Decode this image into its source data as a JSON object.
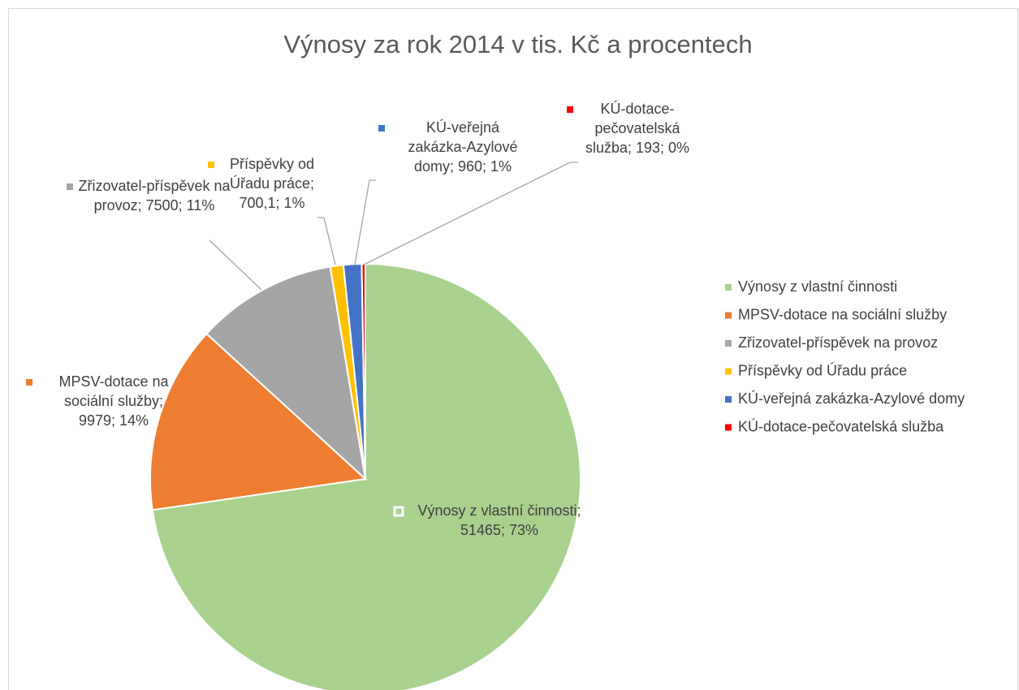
{
  "chart_data": {
    "type": "pie",
    "title": "Výnosy za rok 2014 v tis. Kč a procentech",
    "categories": [
      "Výnosy z vlastní činnosti",
      "MPSV-dotace na sociální služby",
      "Zřizovatel-příspěvek na provoz",
      "Příspěvky od Úřadu práce",
      "KÚ-veřejná zakázka-Azylové domy",
      "KÚ-dotace-pečovatelská služba"
    ],
    "values": [
      51465,
      9979,
      7500,
      700.1,
      960,
      193
    ],
    "value_labels": [
      "Výnosy z vlastní činnosti; 51465; 73%",
      "MPSV-dotace na sociální služby; 9979; 14%",
      "Zřizovatel-příspěvek na provoz; 7500; 11%",
      "Příspěvky od Úřadu práce; 700,1; 1%",
      "KÚ-veřejná zakázka-Azylové domy; 960; 1%",
      "KÚ-dotace-pečovatelská služba; 193; 0%"
    ],
    "colors": [
      "#a9d18e",
      "#ed7d31",
      "#a5a5a5",
      "#ffc000",
      "#4472c4",
      "#ff0000"
    ],
    "legend": "right"
  }
}
